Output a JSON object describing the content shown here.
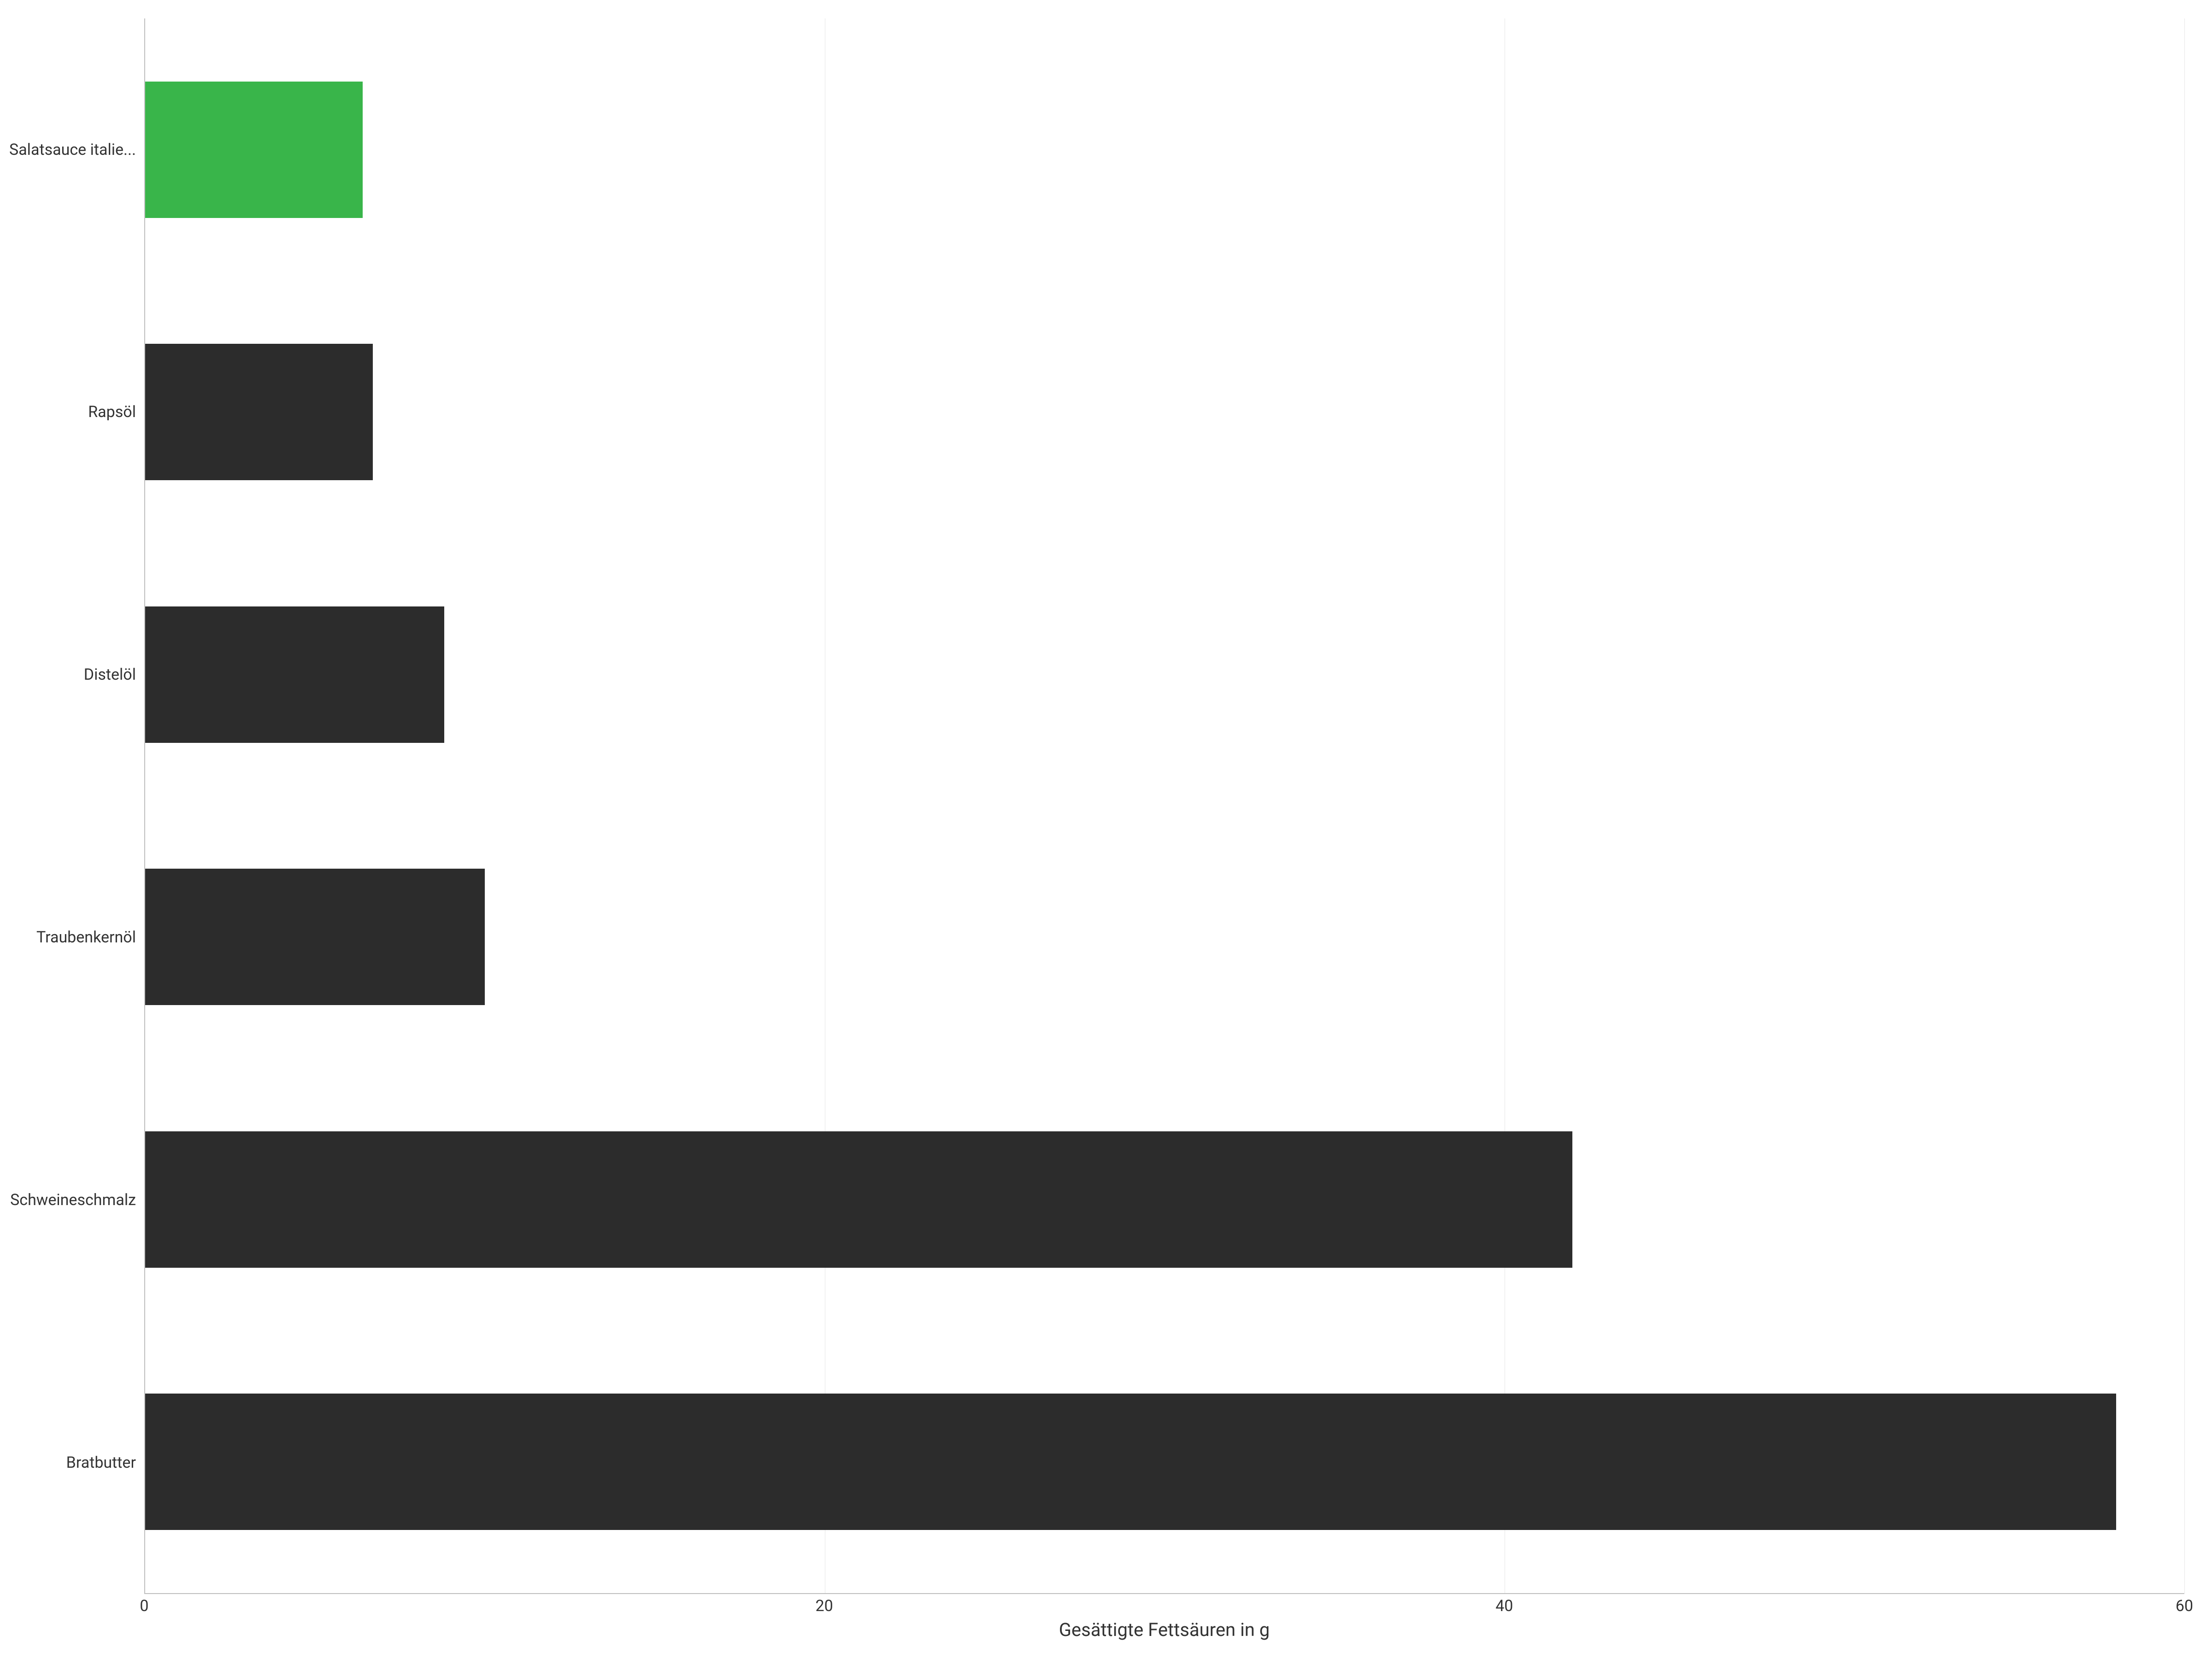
{
  "chart": {
    "type": "bar-horizontal",
    "xlabel": "Gesättigte Fettsäuren in g",
    "x_min": 0,
    "x_max": 60,
    "x_ticks": [
      0,
      20,
      40,
      60
    ],
    "grid_color": "#e6e6e6",
    "axis_color": "#bfbfbf",
    "background_color": "#ffffff",
    "label_fontsize": 34,
    "xlabel_fontsize": 40,
    "label_color": "#333333",
    "bar_thickness_ratio": 0.52,
    "bars": [
      {
        "label": "Salatsauce italie...",
        "value": 6.4,
        "color": "#39b54a"
      },
      {
        "label": "Rapsöl",
        "value": 6.7,
        "color": "#2c2c2c"
      },
      {
        "label": "Distelöl",
        "value": 8.8,
        "color": "#2c2c2c"
      },
      {
        "label": "Traubenkernöl",
        "value": 10.0,
        "color": "#2c2c2c"
      },
      {
        "label": "Schweineschmalz",
        "value": 42.0,
        "color": "#2c2c2c"
      },
      {
        "label": "Bratbutter",
        "value": 58.0,
        "color": "#2c2c2c"
      }
    ]
  }
}
